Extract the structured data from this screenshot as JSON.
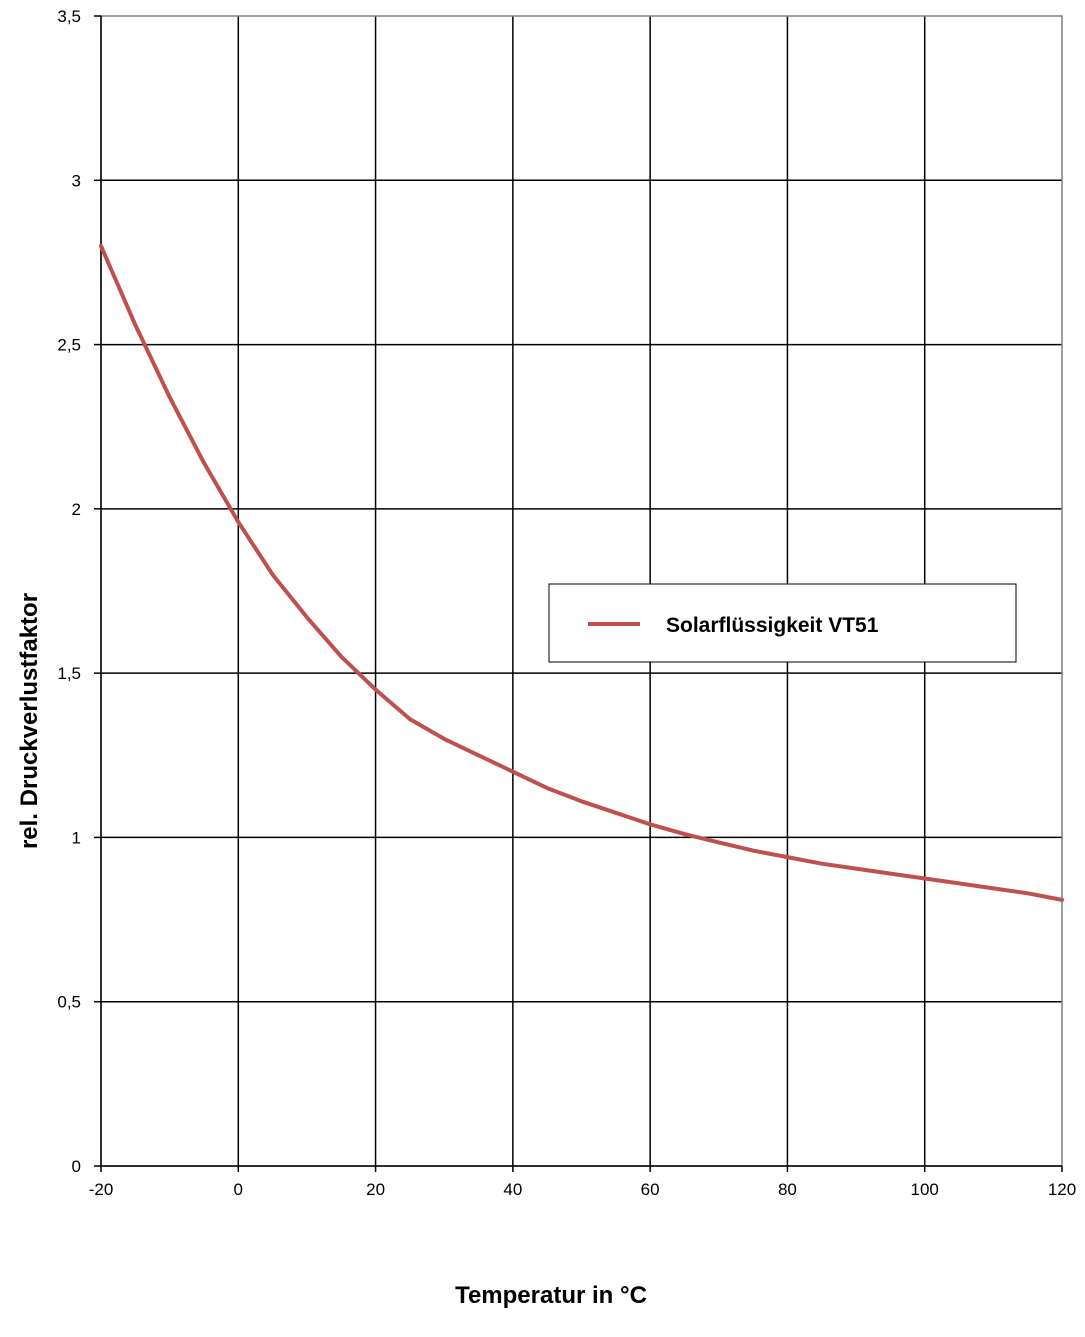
{
  "chart_data": {
    "type": "line",
    "title": "",
    "xlabel": "Temperatur in °C",
    "ylabel": "rel. Druckverlustfaktor",
    "xlim": [
      -20,
      120
    ],
    "ylim": [
      0,
      3.5
    ],
    "x_ticks": [
      -20,
      0,
      20,
      40,
      60,
      80,
      100,
      120
    ],
    "x_tick_labels": [
      "-20",
      "0",
      "20",
      "40",
      "60",
      "80",
      "100",
      "120"
    ],
    "y_ticks": [
      0,
      0.5,
      1,
      1.5,
      2,
      2.5,
      3,
      3.5
    ],
    "y_tick_labels": [
      "0",
      "0,5",
      "1",
      "1,5",
      "2",
      "2,5",
      "3",
      "3,5"
    ],
    "grid": true,
    "legend_position": "center-right",
    "series": [
      {
        "name": "Solarflüssigkeit VT51",
        "color": "#c0504d",
        "x": [
          -20,
          -15,
          -10,
          -5,
          0,
          5,
          10,
          15,
          20,
          25,
          30,
          35,
          40,
          45,
          50,
          55,
          60,
          65,
          70,
          75,
          80,
          85,
          90,
          95,
          100,
          105,
          110,
          115,
          120
        ],
        "y": [
          2.8,
          2.56,
          2.34,
          2.14,
          1.96,
          1.8,
          1.67,
          1.55,
          1.45,
          1.36,
          1.3,
          1.25,
          1.2,
          1.15,
          1.11,
          1.075,
          1.04,
          1.01,
          0.985,
          0.96,
          0.94,
          0.92,
          0.905,
          0.89,
          0.875,
          0.86,
          0.845,
          0.83,
          0.81
        ]
      }
    ]
  }
}
